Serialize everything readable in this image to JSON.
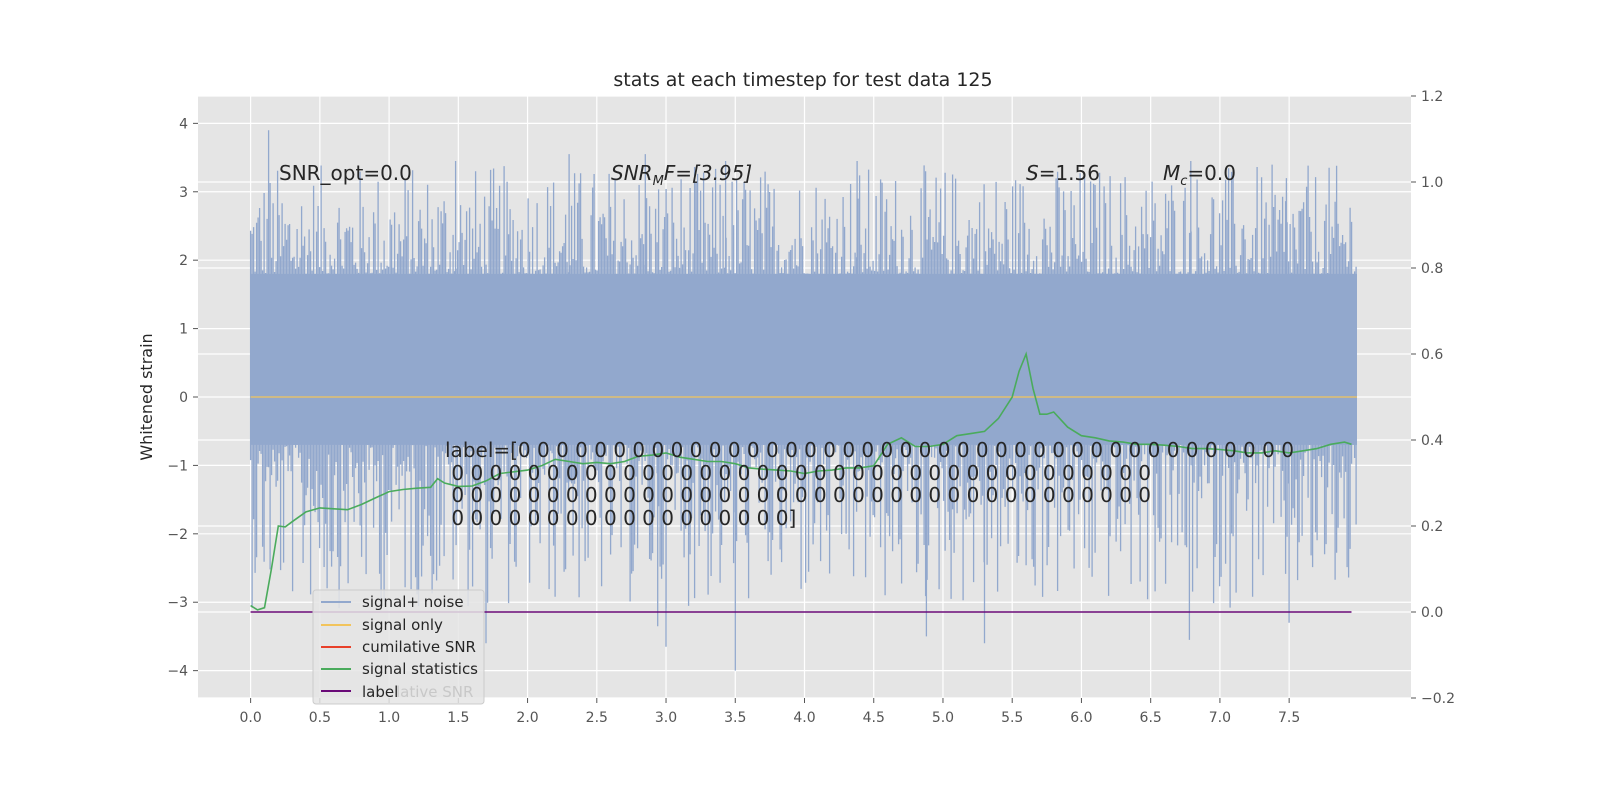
{
  "chart_data": {
    "type": "line",
    "title": "stats at each timestep for test data 125",
    "ylabel": "Whitened strain",
    "xlim": [
      -0.38,
      8.38
    ],
    "ylim": [
      -4.4,
      4.4
    ],
    "y2lim": [
      -0.2,
      1.2
    ],
    "x_ticks": [
      "0.0",
      "0.5",
      "1.0",
      "1.5",
      "2.0",
      "2.5",
      "3.0",
      "3.5",
      "4.0",
      "4.5",
      "5.0",
      "5.5",
      "6.0",
      "6.5",
      "7.0",
      "7.5"
    ],
    "y_ticks": [
      "4",
      "3",
      "2",
      "1",
      "0",
      "−1",
      "−2",
      "−3",
      "−4"
    ],
    "y2_ticks": [
      "1.2",
      "1.0",
      "0.8",
      "0.6",
      "0.4",
      "0.2",
      "0.0",
      "−0.2"
    ],
    "grid": true,
    "legend_position": "lower-left",
    "colors": {
      "background": "#e5e5e5",
      "grid": "#ffffff",
      "noise": "#92a8cd",
      "signal": "#f2c45c",
      "cumulative": "#e8402a",
      "statistics": "#4aab5c",
      "label": "#6a0a78",
      "text": "#262626",
      "tick": "#555555"
    },
    "annotations": {
      "snr_opt": "SNR_opt=0.0",
      "snr_mf_prefix": "SNR",
      "snr_mf_sub": "M",
      "snr_mf_suffix": "F=[3.95]",
      "s_symbol": "S",
      "s_value": "=1.56",
      "mc_symbol": "M",
      "mc_sub": "c",
      "mc_value": "=0.0",
      "label_lines": [
        "label=[0 0 0 0 0 0 0 0 0 0 0 0 0 0 0 0 0 0 0 0 0 0 0 0 0 0 0 0 0 0 0 0 0 0 0 0 0 0 0 0 0",
        " 0 0 0 0 0 0 0 0 0 0 0 0 0 0 0 0 0 0 0 0 0 0 0 0 0 0 0 0 0 0 0 0 0 0 0 0 0",
        " 0 0 0 0 0 0 0 0 0 0 0 0 0 0 0 0 0 0 0 0 0 0 0 0 0 0 0 0 0 0 0 0 0 0 0 0 0",
        " 0 0 0 0 0 0 0 0 0 0 0 0 0 0 0 0 0 0]"
      ]
    },
    "legend": [
      "signal+ noise",
      "signal only",
      "cumilative SNR",
      "signal statistics",
      "label"
    ],
    "legend_ghost_text": "lative SNR",
    "series": [
      {
        "name": "signal+ noise",
        "axis": "left",
        "x_range": [
          0.0,
          7.99
        ],
        "band": [
          -0.7,
          1.8
        ],
        "peaks": [
          [
            0.13,
            3.9
          ],
          [
            1.48,
            3.45
          ],
          [
            2.3,
            3.55
          ],
          [
            2.85,
            3.55
          ],
          [
            3.43,
            3.45
          ],
          [
            4.38,
            3.45
          ],
          [
            6.79,
            3.45
          ],
          [
            7.48,
            3.2
          ],
          [
            3.5,
            -4.0
          ],
          [
            3.0,
            -3.65
          ],
          [
            1.7,
            -3.6
          ],
          [
            5.3,
            -3.6
          ],
          [
            6.78,
            -3.55
          ],
          [
            4.88,
            -3.5
          ],
          [
            2.94,
            -3.35
          ],
          [
            7.5,
            -3.3
          ]
        ]
      },
      {
        "name": "signal only",
        "axis": "left",
        "x": [
          0.0,
          7.99
        ],
        "values": [
          0.0,
          0.0
        ]
      },
      {
        "name": "signal statistics",
        "axis": "right",
        "x": [
          0.0,
          0.05,
          0.1,
          0.15,
          0.2,
          0.25,
          0.3,
          0.4,
          0.5,
          0.6,
          0.7,
          0.8,
          0.9,
          1.0,
          1.1,
          1.2,
          1.3,
          1.35,
          1.4,
          1.5,
          1.6,
          1.7,
          1.8,
          1.9,
          2.0,
          2.1,
          2.2,
          2.3,
          2.4,
          2.5,
          2.6,
          2.7,
          2.8,
          2.9,
          3.0,
          3.1,
          3.2,
          3.3,
          3.4,
          3.5,
          3.6,
          3.7,
          3.8,
          3.9,
          4.0,
          4.1,
          4.2,
          4.3,
          4.4,
          4.5,
          4.6,
          4.7,
          4.8,
          4.9,
          5.0,
          5.1,
          5.2,
          5.3,
          5.4,
          5.5,
          5.55,
          5.6,
          5.65,
          5.7,
          5.75,
          5.8,
          5.9,
          6.0,
          6.1,
          6.2,
          6.3,
          6.4,
          6.5,
          6.6,
          6.7,
          6.8,
          6.9,
          7.0,
          7.1,
          7.2,
          7.3,
          7.4,
          7.5,
          7.6,
          7.7,
          7.8,
          7.9,
          7.95
        ],
        "values": [
          0.015,
          0.005,
          0.01,
          0.1,
          0.2,
          0.198,
          0.21,
          0.233,
          0.242,
          0.24,
          0.238,
          0.25,
          0.265,
          0.28,
          0.285,
          0.288,
          0.29,
          0.31,
          0.3,
          0.292,
          0.293,
          0.305,
          0.322,
          0.326,
          0.33,
          0.34,
          0.355,
          0.35,
          0.345,
          0.348,
          0.345,
          0.35,
          0.362,
          0.365,
          0.37,
          0.36,
          0.355,
          0.35,
          0.35,
          0.345,
          0.335,
          0.332,
          0.33,
          0.328,
          0.322,
          0.328,
          0.33,
          0.335,
          0.335,
          0.34,
          0.39,
          0.405,
          0.385,
          0.385,
          0.39,
          0.41,
          0.415,
          0.42,
          0.45,
          0.5,
          0.56,
          0.6,
          0.52,
          0.46,
          0.46,
          0.465,
          0.43,
          0.41,
          0.405,
          0.398,
          0.395,
          0.39,
          0.39,
          0.388,
          0.385,
          0.38,
          0.38,
          0.378,
          0.375,
          0.37,
          0.37,
          0.375,
          0.37,
          0.375,
          0.38,
          0.39,
          0.395,
          0.39
        ]
      },
      {
        "name": "label",
        "axis": "right",
        "x": [
          0.0,
          7.95
        ],
        "values": [
          0.0,
          0.0
        ]
      }
    ]
  }
}
